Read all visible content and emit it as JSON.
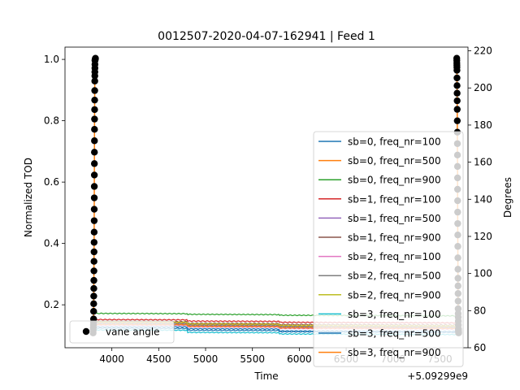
{
  "chart_data": {
    "type": "line",
    "title": "0012507-2020-04-07-162941 | Feed 1",
    "xlabel": "Time",
    "ylabel": "Normalized TOD",
    "y2label": "Degrees",
    "x_offset_label": "+5.09299e9",
    "xlim": [
      3500,
      7800
    ],
    "ylim": [
      0.06,
      1.04
    ],
    "y2lim": [
      60,
      222
    ],
    "x_ticks": [
      4000,
      4500,
      5000,
      5500,
      6000,
      6500,
      7000,
      7500
    ],
    "y_ticks": [
      0.2,
      0.4,
      0.6,
      0.8,
      1.0
    ],
    "y_tick_labels": [
      "0.2",
      "0.4",
      "0.6",
      "0.8",
      "1.0"
    ],
    "y2_ticks": [
      60,
      80,
      100,
      120,
      140,
      160,
      180,
      200,
      220
    ],
    "grid": false,
    "legend_position": "center-right",
    "legend2_position": "lower-left",
    "series": [
      {
        "name": "sb=0, freq_nr=100",
        "color": "#1f77b4",
        "x": [
          3800,
          4800,
          4810,
          5780,
          5790,
          7680
        ],
        "y": [
          0.128,
          0.128,
          0.122,
          0.121,
          0.115,
          0.113
        ]
      },
      {
        "name": "sb=0, freq_nr=500",
        "color": "#ff7f0e",
        "x": [
          3800,
          4800,
          4810,
          5780,
          5790,
          7680
        ],
        "y": [
          0.142,
          0.141,
          0.136,
          0.135,
          0.131,
          0.129
        ]
      },
      {
        "name": "sb=0, freq_nr=900",
        "color": "#2ca02c",
        "x": [
          3800,
          4800,
          4810,
          5780,
          5790,
          7680
        ],
        "y": [
          0.172,
          0.171,
          0.169,
          0.168,
          0.166,
          0.164
        ]
      },
      {
        "name": "sb=1, freq_nr=100",
        "color": "#d62728",
        "x": [
          3800,
          4800,
          4810,
          5780,
          5790,
          7680
        ],
        "y": [
          0.152,
          0.151,
          0.147,
          0.146,
          0.143,
          0.141
        ]
      },
      {
        "name": "sb=1, freq_nr=500",
        "color": "#9467bd",
        "x": [
          3800,
          4800,
          4810,
          5780,
          5790,
          7680
        ],
        "y": [
          0.138,
          0.137,
          0.132,
          0.131,
          0.127,
          0.125
        ]
      },
      {
        "name": "sb=1, freq_nr=900",
        "color": "#8c564b",
        "x": [
          3800,
          4800,
          4810,
          5780,
          5790,
          7680
        ],
        "y": [
          0.146,
          0.145,
          0.14,
          0.139,
          0.136,
          0.134
        ]
      },
      {
        "name": "sb=2, freq_nr=100",
        "color": "#e377c2",
        "x": [
          3800,
          4800,
          4810,
          5780,
          5790,
          7680
        ],
        "y": [
          0.134,
          0.133,
          0.128,
          0.127,
          0.123,
          0.121
        ]
      },
      {
        "name": "sb=2, freq_nr=500",
        "color": "#7f7f7f",
        "x": [
          3800,
          4800,
          4810,
          5780,
          5790,
          7680
        ],
        "y": [
          0.14,
          0.139,
          0.134,
          0.133,
          0.129,
          0.127
        ]
      },
      {
        "name": "sb=2, freq_nr=900",
        "color": "#bcbd22",
        "x": [
          3800,
          4800,
          4810,
          5780,
          5790,
          7680
        ],
        "y": [
          0.144,
          0.143,
          0.138,
          0.137,
          0.133,
          0.131
        ]
      },
      {
        "name": "sb=3, freq_nr=100",
        "color": "#17becf",
        "x": [
          3800,
          4800,
          4810,
          5780,
          5790,
          7680
        ],
        "y": [
          0.118,
          0.117,
          0.11,
          0.109,
          0.105,
          0.103
        ]
      },
      {
        "name": "sb=3, freq_nr=500",
        "color": "#1f77b4",
        "x": [
          3800,
          4800,
          4810,
          5780,
          5790,
          7680
        ],
        "y": [
          0.124,
          0.123,
          0.117,
          0.116,
          0.112,
          0.11
        ]
      },
      {
        "name": "sb=3, freq_nr=900",
        "color": "#ff7f0e",
        "x": [
          3800,
          4800,
          4810,
          5780,
          5790,
          7680
        ],
        "y": [
          0.136,
          0.135,
          0.13,
          0.129,
          0.125,
          0.123
        ]
      }
    ],
    "secondary_series": {
      "name": "vane angle",
      "color": "#000000",
      "axis": "right",
      "segments": [
        {
          "x": [
            3800,
            3805,
            3808,
            3811,
            3813,
            3815,
            3818,
            3820,
            3825
          ],
          "y": [
            68,
            75,
            95,
            120,
            150,
            180,
            205,
            215,
            216
          ]
        },
        {
          "x": [
            7680,
            7682,
            7685,
            7688,
            7690,
            7693,
            7695,
            7698,
            7700
          ],
          "y": [
            216,
            210,
            190,
            160,
            130,
            100,
            80,
            70,
            68
          ]
        }
      ]
    }
  }
}
